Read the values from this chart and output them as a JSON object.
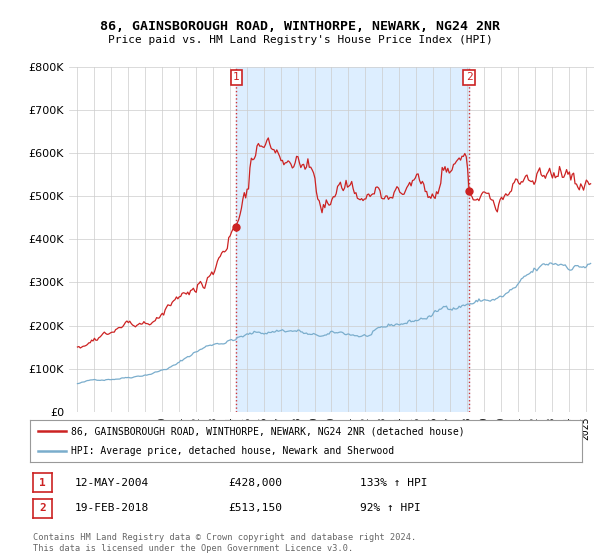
{
  "title": "86, GAINSBOROUGH ROAD, WINTHORPE, NEWARK, NG24 2NR",
  "subtitle": "Price paid vs. HM Land Registry's House Price Index (HPI)",
  "legend_line1": "86, GAINSBOROUGH ROAD, WINTHORPE, NEWARK, NG24 2NR (detached house)",
  "legend_line2": "HPI: Average price, detached house, Newark and Sherwood",
  "sale1_date": "12-MAY-2004",
  "sale1_price": "£428,000",
  "sale1_hpi": "133% ↑ HPI",
  "sale2_date": "19-FEB-2018",
  "sale2_price": "£513,150",
  "sale2_hpi": "92% ↑ HPI",
  "footer": "Contains HM Land Registry data © Crown copyright and database right 2024.\nThis data is licensed under the Open Government Licence v3.0.",
  "house_color": "#cc2222",
  "hpi_color": "#7aadcc",
  "shade_color": "#ddeeff",
  "sale1_x": 2004.37,
  "sale2_x": 2018.12,
  "ylim_max": 800000,
  "yticks": [
    0,
    100000,
    200000,
    300000,
    400000,
    500000,
    600000,
    700000,
    800000
  ],
  "xmin": 1994.5,
  "xmax": 2025.5
}
